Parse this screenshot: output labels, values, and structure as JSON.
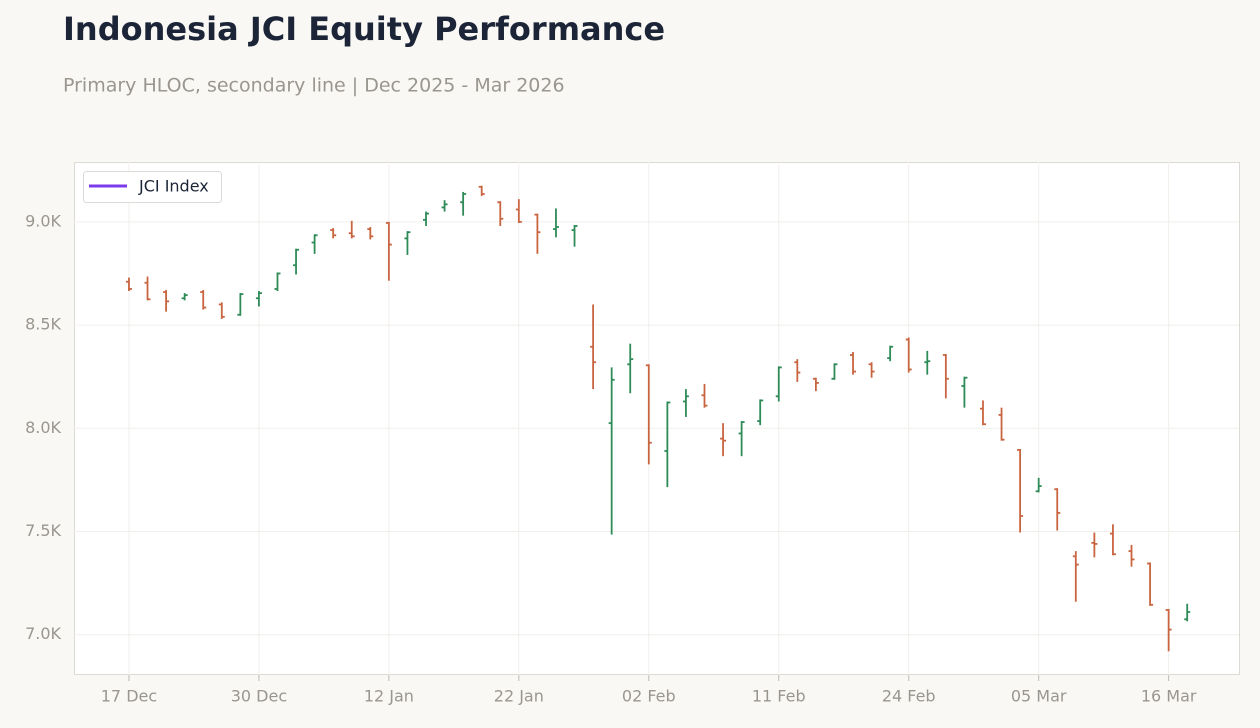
{
  "chart_data": {
    "type": "ohlc",
    "title": "Indonesia JCI Equity Performance",
    "subtitle": "Primary HLOC, secondary line | Dec 2025 - Mar 2026",
    "categories": [
      "17 Dec",
      null,
      null,
      null,
      null,
      null,
      null,
      "30 Dec",
      null,
      null,
      null,
      null,
      null,
      null,
      "12 Jan",
      null,
      null,
      null,
      null,
      null,
      null,
      "22 Jan",
      null,
      null,
      null,
      null,
      null,
      null,
      "02 Feb",
      null,
      null,
      null,
      null,
      null,
      null,
      "11 Feb",
      null,
      null,
      null,
      null,
      null,
      null,
      "24 Feb",
      null,
      null,
      null,
      null,
      null,
      null,
      "05 Mar",
      null,
      null,
      null,
      null,
      null,
      null,
      "16 Mar",
      null
    ],
    "series": [
      {
        "name": "JCI Index",
        "color": "#7c3aed",
        "up_color": "#2e8b57",
        "down_color": "#c8643f",
        "open": [
          8710,
          8705,
          8660,
          8630,
          8660,
          8600,
          8550,
          8630,
          8675,
          8790,
          8900,
          8960,
          8945,
          8965,
          8995,
          8920,
          9010,
          9070,
          9095,
          9170,
          9095,
          9060,
          9035,
          8965,
          8960,
          8395,
          8025,
          8310,
          8305,
          7890,
          8130,
          8160,
          7950,
          7975,
          8035,
          8155,
          8320,
          8240,
          8240,
          8355,
          8310,
          8340,
          8430,
          8320,
          8355,
          8205,
          8095,
          8065,
          7895,
          7695,
          7705,
          7380,
          7445,
          7490,
          7405,
          7345,
          7120,
          7075
        ],
        "high": [
          8730,
          8735,
          8670,
          8655,
          8670,
          8610,
          8655,
          8665,
          8755,
          8870,
          8940,
          8970,
          9005,
          8975,
          9000,
          8955,
          9050,
          9105,
          9145,
          9175,
          9100,
          9110,
          9040,
          9065,
          8985,
          8600,
          8295,
          8410,
          8310,
          8130,
          8190,
          8215,
          8025,
          8035,
          8140,
          8300,
          8335,
          8245,
          8315,
          8370,
          8320,
          8400,
          8440,
          8375,
          8360,
          8250,
          8135,
          8100,
          7900,
          7760,
          7710,
          7405,
          7495,
          7535,
          7435,
          7350,
          7125,
          7150
        ],
        "low": [
          8665,
          8620,
          8565,
          8620,
          8575,
          8530,
          8545,
          8590,
          8665,
          8745,
          8845,
          8920,
          8920,
          8915,
          8715,
          8840,
          8980,
          9050,
          9030,
          9125,
          8980,
          8995,
          8845,
          8925,
          8880,
          8190,
          7485,
          8170,
          7825,
          7715,
          8055,
          8100,
          7865,
          7865,
          8015,
          8130,
          8225,
          8180,
          8235,
          8260,
          8245,
          8325,
          8270,
          8260,
          8145,
          8100,
          8015,
          7940,
          7495,
          7690,
          7505,
          7160,
          7375,
          7385,
          7330,
          7140,
          6920,
          7065
        ],
        "close": [
          8675,
          8625,
          8615,
          8645,
          8585,
          8540,
          8650,
          8655,
          8750,
          8865,
          8935,
          8935,
          8930,
          8930,
          8890,
          8950,
          9040,
          9085,
          9135,
          9135,
          9015,
          9000,
          8950,
          8975,
          8980,
          8320,
          8235,
          8335,
          7930,
          8125,
          8155,
          8110,
          7940,
          8030,
          8135,
          8295,
          8270,
          8220,
          8310,
          8275,
          8275,
          8395,
          8285,
          8325,
          8240,
          8245,
          8020,
          7945,
          7575,
          7720,
          7590,
          7340,
          7440,
          7390,
          7365,
          7145,
          7025,
          7110
        ]
      }
    ],
    "ylim": [
      6805,
      9290
    ],
    "yticks": [
      {
        "value": 7000,
        "label": "7.0K"
      },
      {
        "value": 7500,
        "label": "7.5K"
      },
      {
        "value": 8000,
        "label": "8.0K"
      },
      {
        "value": 8500,
        "label": "8.5K"
      },
      {
        "value": 9000,
        "label": "9.0K"
      }
    ],
    "grid": true,
    "legend": "upper left"
  }
}
